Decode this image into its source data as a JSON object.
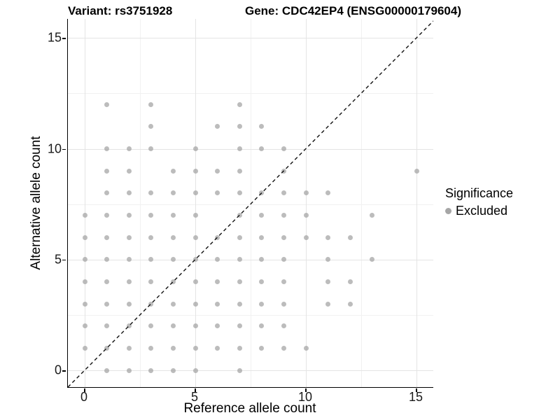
{
  "title": {
    "variant": "Variant: rs3751928",
    "gene": "Gene: CDC42EP4 (ENSG00000179604)"
  },
  "legend": {
    "title": "Significance",
    "items": [
      {
        "label": "Excluded",
        "color": "#a6a6a6"
      }
    ]
  },
  "chart_data": {
    "type": "scatter",
    "title_left": "Variant: rs3751928",
    "title_right": "Gene: CDC42EP4 (ENSG00000179604)",
    "xlabel": "Reference allele count",
    "ylabel": "Alternative allele count",
    "xlim": [
      -0.76,
      15.76
    ],
    "ylim": [
      -0.76,
      15.86
    ],
    "x_ticks": [
      0,
      5,
      10,
      15
    ],
    "y_ticks": [
      0,
      5,
      10,
      15
    ],
    "minor_gridlines": [
      2.5,
      7.5,
      12.5
    ],
    "grid": true,
    "point_color": "#a6a6a6",
    "point_opacity": 0.75,
    "reference_line": {
      "type": "identity y=x",
      "style": "dashed",
      "color": "#000000"
    },
    "legend": {
      "title": "Significance",
      "position": "right",
      "entries": [
        "Excluded"
      ]
    },
    "series": [
      {
        "name": "Excluded",
        "color": "#a6a6a6",
        "points": [
          [
            1,
            0
          ],
          [
            2,
            0
          ],
          [
            3,
            0
          ],
          [
            4,
            0
          ],
          [
            5,
            0
          ],
          [
            7,
            0
          ],
          [
            0,
            1
          ],
          [
            1,
            1
          ],
          [
            2,
            1
          ],
          [
            3,
            1
          ],
          [
            4,
            1
          ],
          [
            5,
            1
          ],
          [
            6,
            1
          ],
          [
            7,
            1
          ],
          [
            8,
            1
          ],
          [
            9,
            1
          ],
          [
            10,
            1
          ],
          [
            0,
            2
          ],
          [
            1,
            2
          ],
          [
            2,
            2
          ],
          [
            3,
            2
          ],
          [
            4,
            2
          ],
          [
            5,
            2
          ],
          [
            6,
            2
          ],
          [
            7,
            2
          ],
          [
            8,
            2
          ],
          [
            9,
            2
          ],
          [
            0,
            3
          ],
          [
            1,
            3
          ],
          [
            2,
            3
          ],
          [
            3,
            3
          ],
          [
            4,
            3
          ],
          [
            5,
            3
          ],
          [
            6,
            3
          ],
          [
            7,
            3
          ],
          [
            8,
            3
          ],
          [
            9,
            3
          ],
          [
            11,
            3
          ],
          [
            12,
            3
          ],
          [
            0,
            4
          ],
          [
            1,
            4
          ],
          [
            2,
            4
          ],
          [
            3,
            4
          ],
          [
            4,
            4
          ],
          [
            5,
            4
          ],
          [
            6,
            4
          ],
          [
            7,
            4
          ],
          [
            8,
            4
          ],
          [
            9,
            4
          ],
          [
            11,
            4
          ],
          [
            12,
            4
          ],
          [
            0,
            5
          ],
          [
            1,
            5
          ],
          [
            2,
            5
          ],
          [
            3,
            5
          ],
          [
            4,
            5
          ],
          [
            5,
            5
          ],
          [
            6,
            5
          ],
          [
            7,
            5
          ],
          [
            8,
            5
          ],
          [
            9,
            5
          ],
          [
            11,
            5
          ],
          [
            13,
            5
          ],
          [
            0,
            6
          ],
          [
            1,
            6
          ],
          [
            2,
            6
          ],
          [
            3,
            6
          ],
          [
            4,
            6
          ],
          [
            5,
            6
          ],
          [
            6,
            6
          ],
          [
            7,
            6
          ],
          [
            8,
            6
          ],
          [
            9,
            6
          ],
          [
            10,
            6
          ],
          [
            11,
            6
          ],
          [
            12,
            6
          ],
          [
            0,
            7
          ],
          [
            1,
            7
          ],
          [
            2,
            7
          ],
          [
            3,
            7
          ],
          [
            4,
            7
          ],
          [
            5,
            7
          ],
          [
            7,
            7
          ],
          [
            8,
            7
          ],
          [
            9,
            7
          ],
          [
            10,
            7
          ],
          [
            13,
            7
          ],
          [
            1,
            8
          ],
          [
            2,
            8
          ],
          [
            3,
            8
          ],
          [
            4,
            8
          ],
          [
            5,
            8
          ],
          [
            6,
            8
          ],
          [
            7,
            8
          ],
          [
            8,
            8
          ],
          [
            9,
            8
          ],
          [
            10,
            8
          ],
          [
            11,
            8
          ],
          [
            1,
            9
          ],
          [
            2,
            9
          ],
          [
            4,
            9
          ],
          [
            5,
            9
          ],
          [
            6,
            9
          ],
          [
            7,
            9
          ],
          [
            9,
            9
          ],
          [
            15,
            9
          ],
          [
            1,
            10
          ],
          [
            2,
            10
          ],
          [
            3,
            10
          ],
          [
            5,
            10
          ],
          [
            7,
            10
          ],
          [
            8,
            10
          ],
          [
            9,
            10
          ],
          [
            3,
            11
          ],
          [
            6,
            11
          ],
          [
            7,
            11
          ],
          [
            8,
            11
          ],
          [
            1,
            12
          ],
          [
            3,
            12
          ],
          [
            7,
            12
          ]
        ]
      }
    ]
  }
}
